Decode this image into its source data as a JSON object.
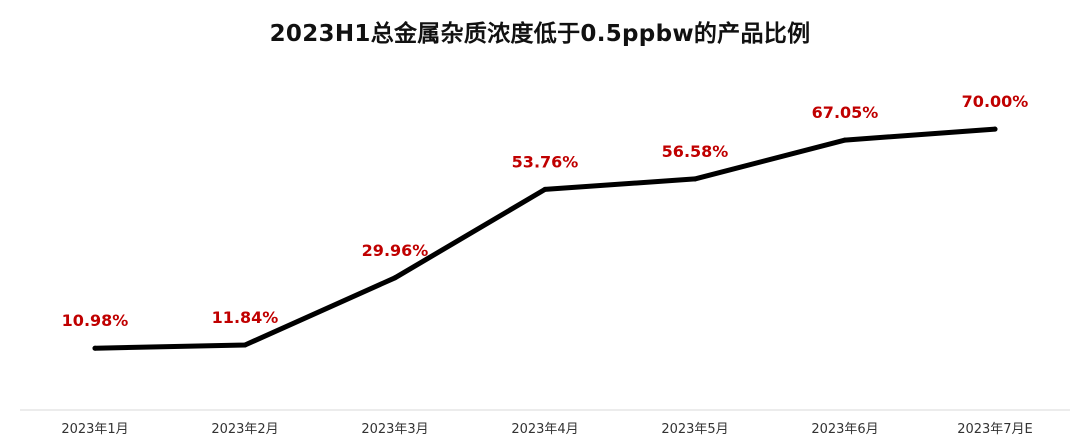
{
  "chart_data": {
    "type": "line",
    "title": "2023H1总金属杂质浓度低于0.5ppbw的产品比例",
    "categories": [
      "2023年1月",
      "2023年2月",
      "2023年3月",
      "2023年4月",
      "2023年5月",
      "2023年6月",
      "2023年7月E"
    ],
    "series": [
      {
        "values": [
          10.98,
          11.84,
          29.96,
          53.76,
          56.58,
          67.05,
          70.0
        ],
        "labels": [
          "10.98%",
          "11.84%",
          "29.96%",
          "53.76%",
          "56.58%",
          "67.05%",
          "70.00%"
        ]
      }
    ],
    "xlabel": "",
    "ylabel": "",
    "ylim": [
      0,
      80
    ],
    "grid": false,
    "legend": "none",
    "colors": {
      "line": "#000000",
      "data_label": "#c00000",
      "axis": "#d9d9d9",
      "tick_label": "#333333"
    }
  }
}
